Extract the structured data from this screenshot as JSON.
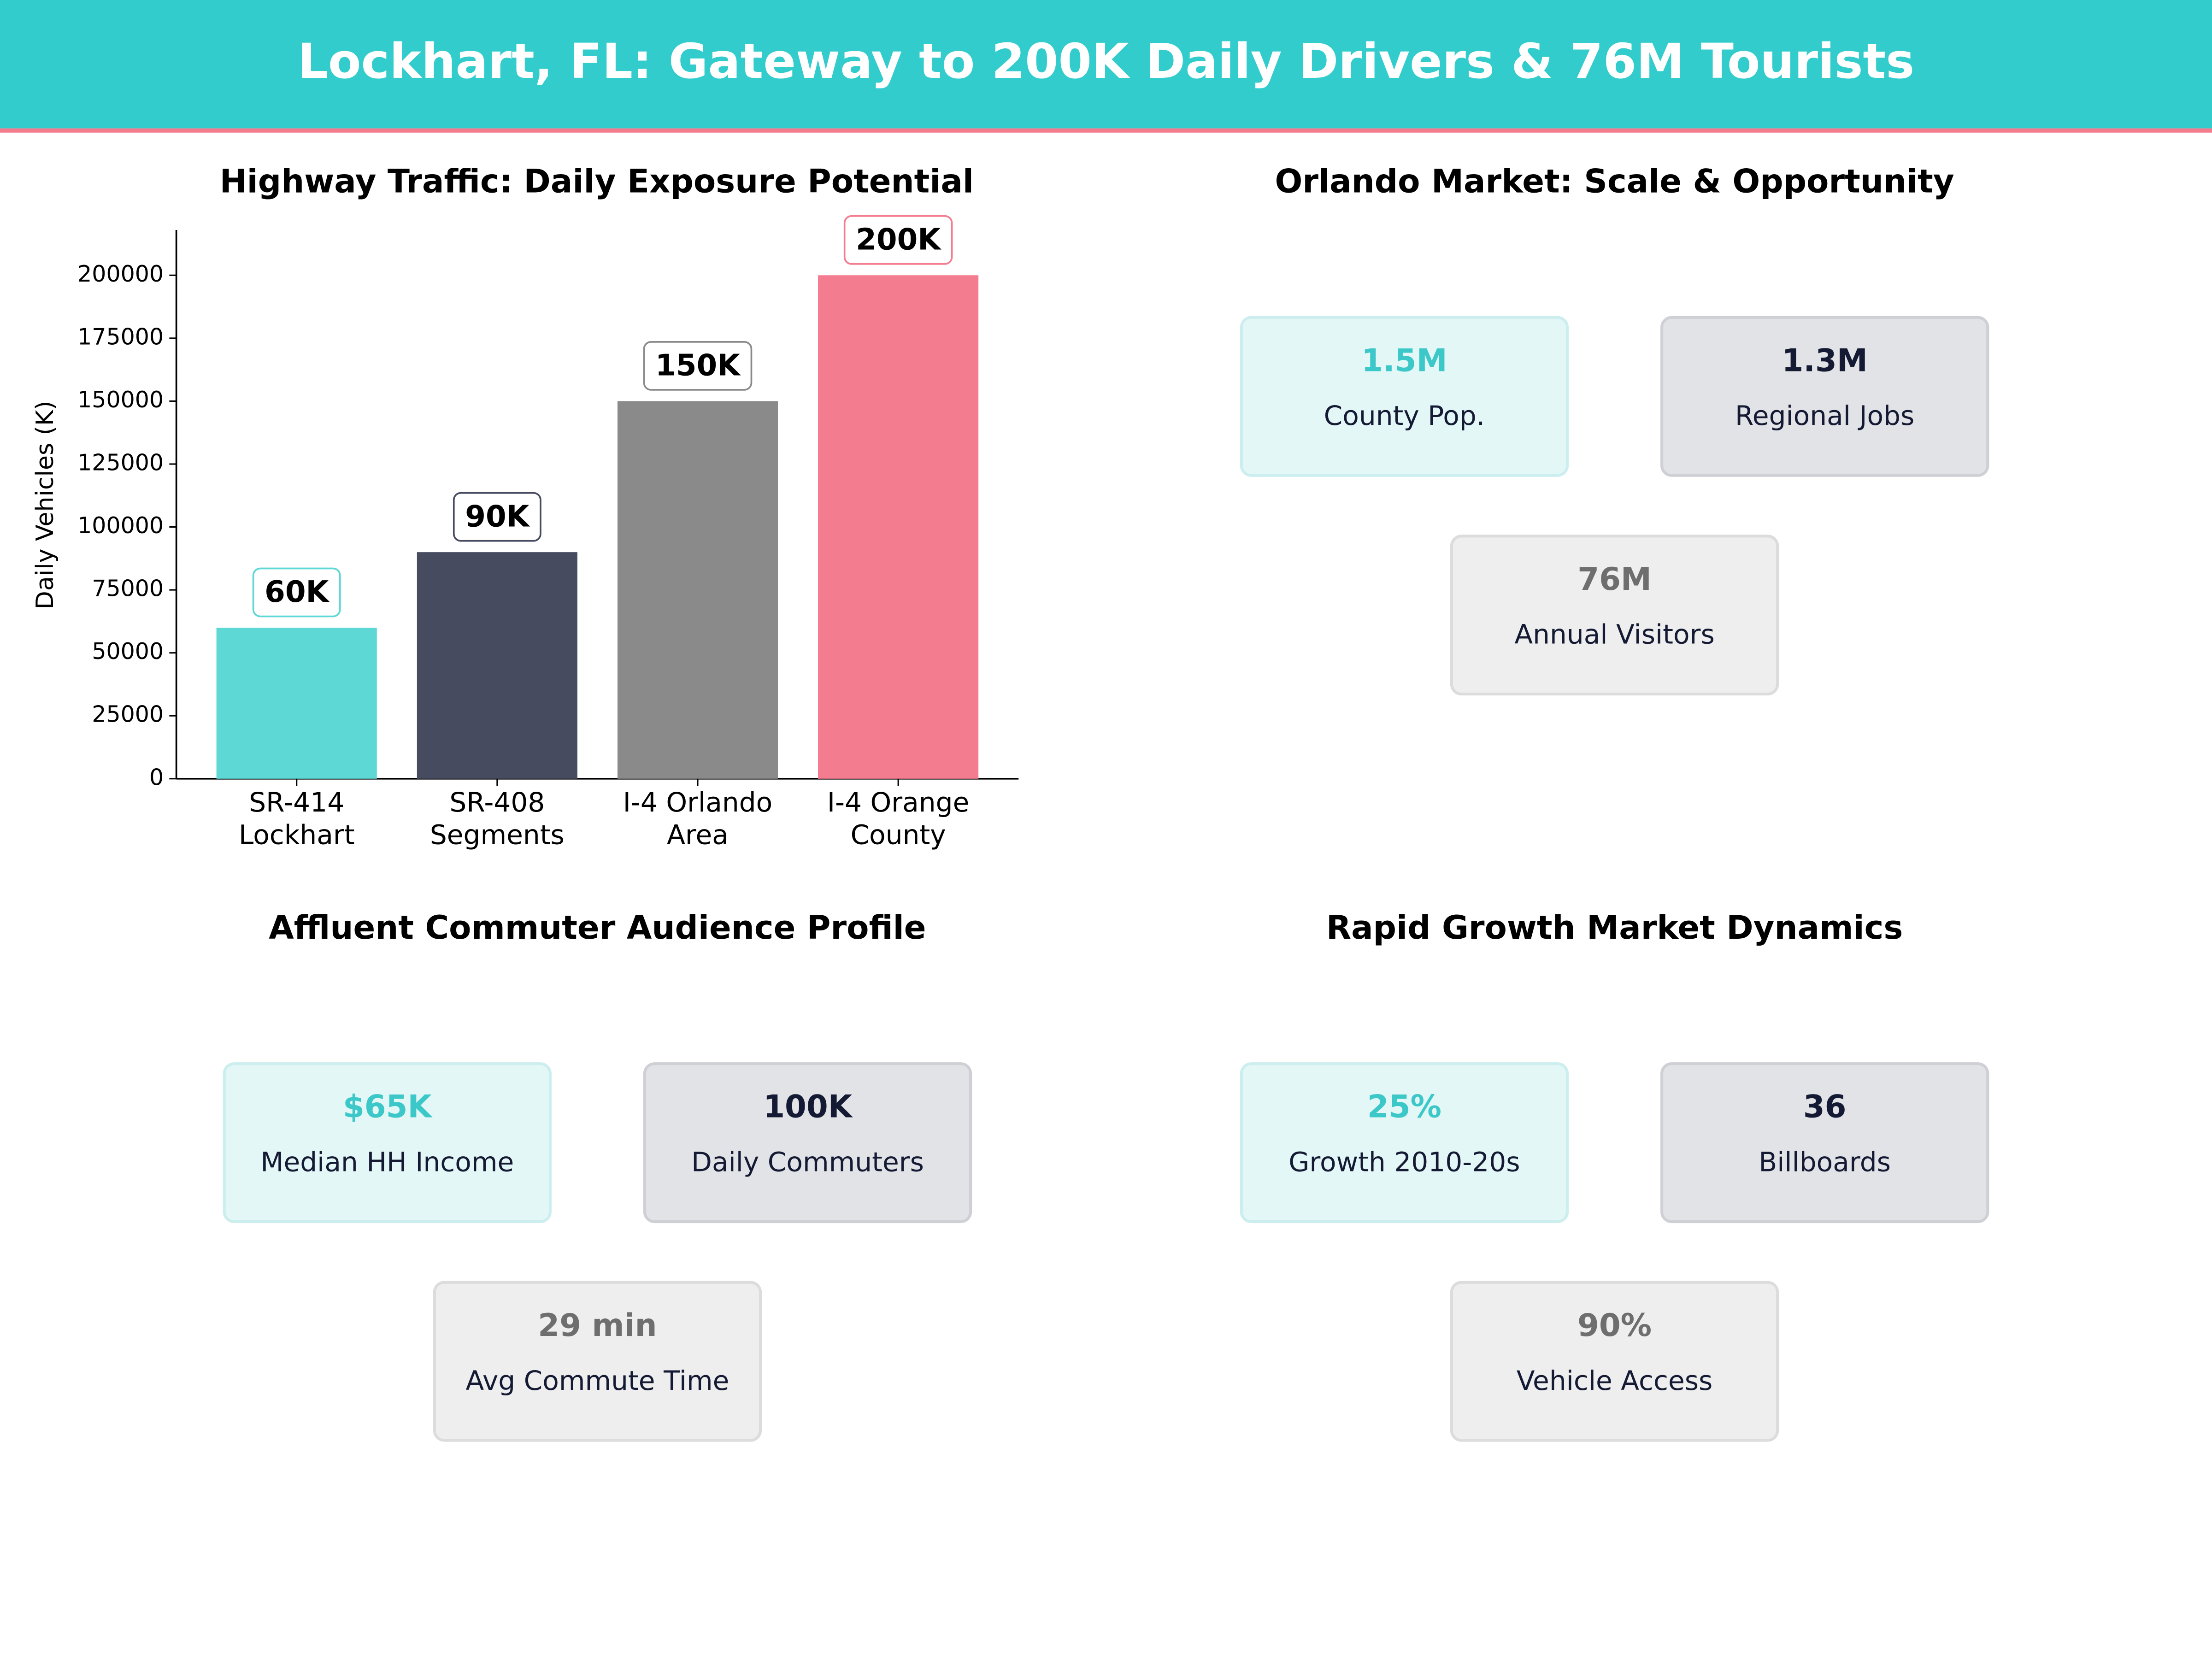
{
  "header": {
    "title": "Lockhart, FL: Gateway to 200K Daily Drivers & 76M Tourists"
  },
  "chart_data": {
    "type": "bar",
    "title": "Highway Traffic: Daily Exposure Potential",
    "y_label": "Daily Vehicles (K)",
    "categories": [
      "SR-414\nLockhart",
      "SR-408\nSegments",
      "I-4 Orlando\nArea",
      "I-4 Orange\nCounty"
    ],
    "values": [
      60000,
      90000,
      150000,
      200000
    ],
    "value_labels": [
      "60K",
      "90K",
      "150K",
      "200K"
    ],
    "colors": [
      "#5dd8d4",
      "#464b60",
      "#8a8a8a",
      "#f47c8f"
    ],
    "ylim": [
      0,
      218000
    ],
    "yticks": [
      0,
      25000,
      50000,
      75000,
      100000,
      125000,
      150000,
      175000,
      200000
    ]
  },
  "panels": [
    {
      "title": "Orlando Market: Scale & Opportunity",
      "cards": [
        {
          "value": "1.5M",
          "label": "County Pop."
        },
        {
          "value": "1.3M",
          "label": "Regional Jobs"
        },
        {
          "value": "76M",
          "label": "Annual Visitors"
        }
      ]
    },
    {
      "title": "Affluent Commuter Audience Profile",
      "cards": [
        {
          "value": "$65K",
          "label": "Median HH Income"
        },
        {
          "value": "100K",
          "label": "Daily Commuters"
        },
        {
          "value": "29 min",
          "label": "Avg Commute Time"
        }
      ]
    },
    {
      "title": "Rapid Growth Market Dynamics",
      "cards": [
        {
          "value": "25%",
          "label": "Growth 2010-20s"
        },
        {
          "value": "36",
          "label": "Billboards"
        },
        {
          "value": "90%",
          "label": "Vehicle Access"
        }
      ]
    }
  ]
}
